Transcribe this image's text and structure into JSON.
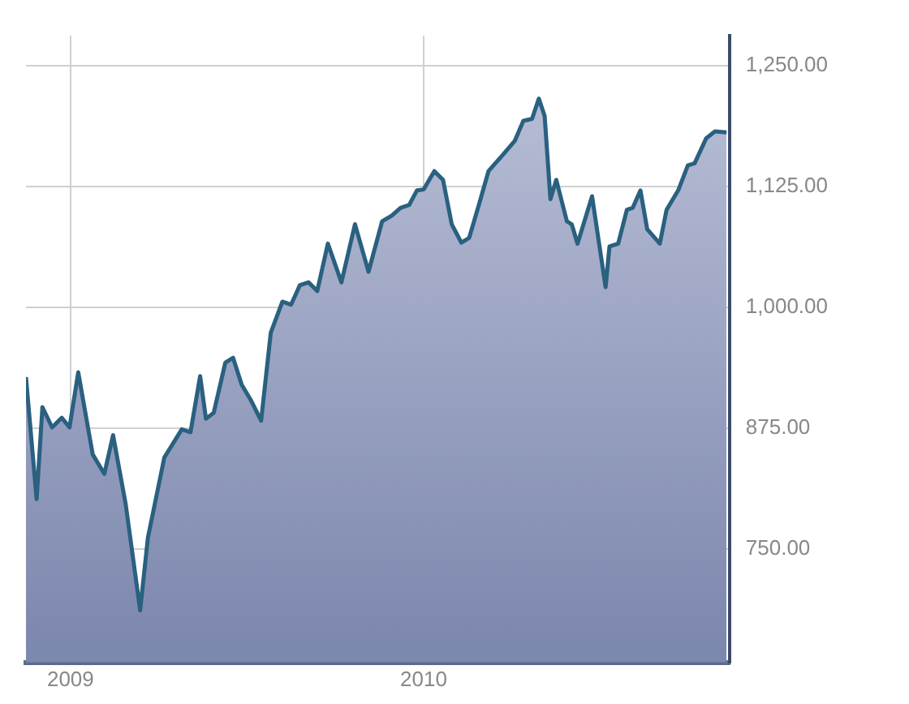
{
  "chart_data": {
    "type": "area",
    "x": [
      "2008-11-16",
      "2008-11-27",
      "2008-12-03",
      "2008-12-13",
      "2008-12-23",
      "2008-12-31",
      "2009-01-09",
      "2009-01-24",
      "2009-02-05",
      "2009-02-14",
      "2009-02-27",
      "2009-03-14",
      "2009-03-22",
      "2009-04-08",
      "2009-04-26",
      "2009-05-05",
      "2009-05-15",
      "2009-05-21",
      "2009-05-29",
      "2009-06-10",
      "2009-06-18",
      "2009-06-27",
      "2009-07-06",
      "2009-07-17",
      "2009-07-27",
      "2009-08-08",
      "2009-08-17",
      "2009-08-26",
      "2009-09-04",
      "2009-09-13",
      "2009-09-24",
      "2009-10-08",
      "2009-10-22",
      "2009-11-05",
      "2009-11-19",
      "2009-11-29",
      "2009-12-08",
      "2009-12-17",
      "2009-12-25",
      "2010-01-01",
      "2010-01-12",
      "2010-01-21",
      "2010-01-30",
      "2010-02-09",
      "2010-02-17",
      "2010-02-27",
      "2010-03-09",
      "2010-03-24",
      "2010-04-05",
      "2010-04-14",
      "2010-04-23",
      "2010-04-30",
      "2010-05-06",
      "2010-05-12",
      "2010-05-18",
      "2010-05-29",
      "2010-06-03",
      "2010-06-09",
      "2010-06-24",
      "2010-07-08",
      "2010-07-12",
      "2010-07-21",
      "2010-07-30",
      "2010-08-05",
      "2010-08-13",
      "2010-08-20",
      "2010-09-02",
      "2010-09-09",
      "2010-09-21",
      "2010-10-01",
      "2010-10-08",
      "2010-10-20",
      "2010-10-29",
      "2010-11-10"
    ],
    "series": [
      {
        "color": "#2a6080",
        "values": [
          928,
          802,
          897,
          876,
          886,
          876,
          933,
          848,
          828,
          868,
          797,
          687,
          762,
          845,
          874,
          871,
          929,
          885,
          891,
          943,
          948,
          920,
          905,
          883,
          974,
          1006,
          1003,
          1023,
          1026,
          1017,
          1066,
          1026,
          1086,
          1037,
          1089,
          1095,
          1103,
          1106,
          1121,
          1122,
          1141,
          1132,
          1086,
          1067,
          1072,
          1106,
          1141,
          1158,
          1172,
          1193,
          1195,
          1216,
          1198,
          1112,
          1132,
          1089,
          1086,
          1066,
          1115,
          1021,
          1063,
          1066,
          1101,
          1103,
          1121,
          1081,
          1066,
          1101,
          1121,
          1147,
          1149,
          1175,
          1182,
          1181
        ]
      }
    ],
    "xlim": [
      "2008-11-16",
      "2010-11-13"
    ],
    "xticks": [
      {
        "value": "2009-01-01",
        "label": "2009"
      },
      {
        "value": "2010-01-01",
        "label": "2010"
      }
    ],
    "ylim": [
      633,
      1281
    ],
    "yticks": [
      {
        "value": 750,
        "label": "750.00"
      },
      {
        "value": 875,
        "label": "875.00"
      },
      {
        "value": 1000,
        "label": "1,000.00"
      },
      {
        "value": 1125,
        "label": "1,125.00"
      },
      {
        "value": 1250,
        "label": "1,250.00"
      }
    ],
    "grid": true,
    "legend": false,
    "marker": "none",
    "line_style": "solid"
  }
}
